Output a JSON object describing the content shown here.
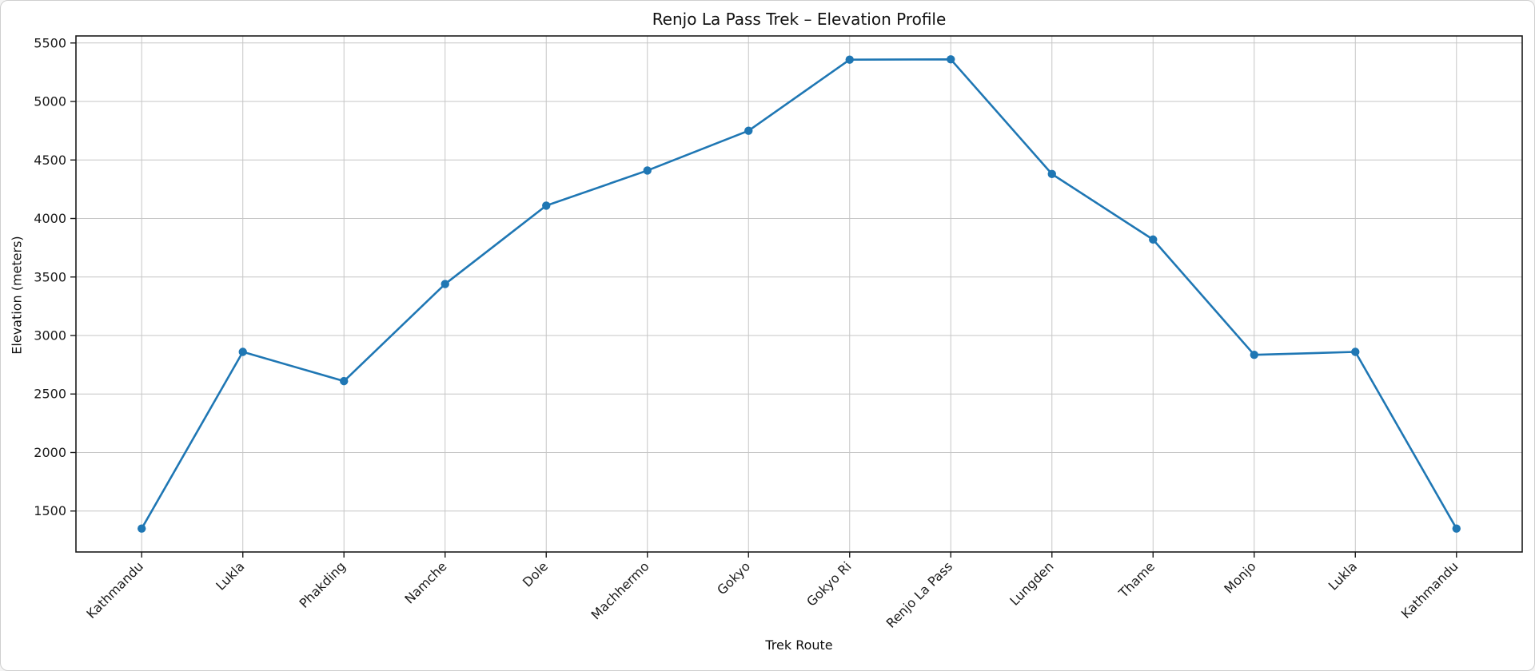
{
  "window": {
    "background": "#ffffff",
    "border_color": "#cfcfcf"
  },
  "chart_data": {
    "type": "line",
    "title": "Renjo La Pass Trek – Elevation Profile",
    "xlabel": "Trek Route",
    "ylabel": "Elevation (meters)",
    "categories": [
      "Kathmandu",
      "Lukla",
      "Phakding",
      "Namche",
      "Dole",
      "Machhermo",
      "Gokyo",
      "Gokyo Ri",
      "Renjo La Pass",
      "Lungden",
      "Thame",
      "Monjo",
      "Lukla",
      "Kathmandu"
    ],
    "values": [
      1350,
      2860,
      2610,
      3440,
      4110,
      4410,
      4750,
      5357,
      5360,
      4380,
      3820,
      2835,
      2860,
      1350
    ],
    "series_name": "Elevation",
    "yticks": [
      1500,
      2000,
      2500,
      3000,
      3500,
      4000,
      4500,
      5000,
      5500
    ],
    "ylim": [
      1150,
      5560
    ],
    "x_tick_rotation": 45,
    "grid": true,
    "legend_position": "none",
    "line_color": "#1f77b4",
    "marker": "circle",
    "grid_color": "#c6c6c6",
    "spine_color": "#1a1a1a",
    "text_color": "#1a1a1a"
  }
}
